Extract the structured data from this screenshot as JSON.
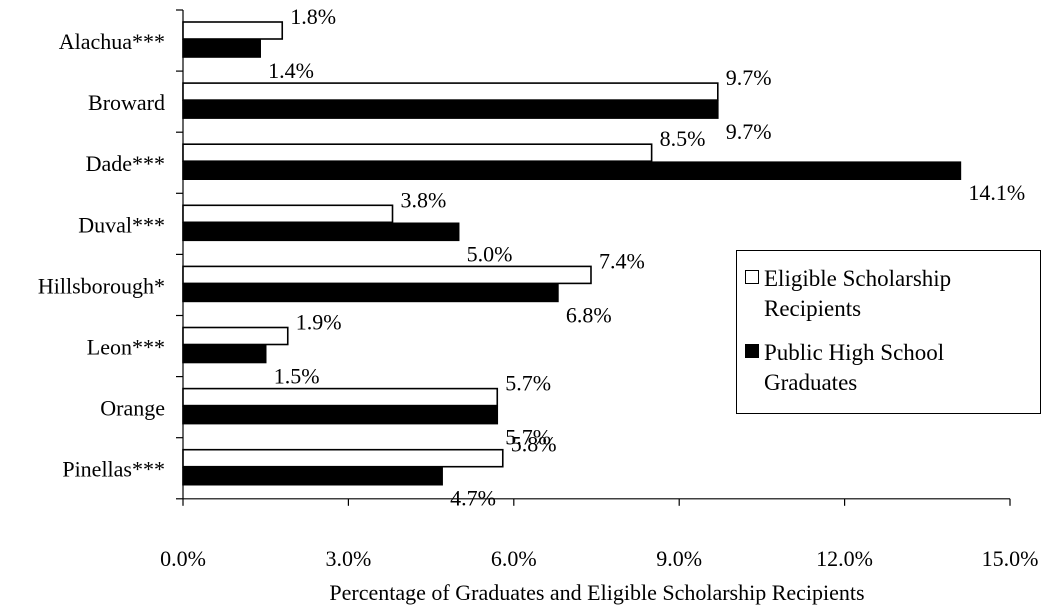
{
  "chart_data": {
    "type": "bar",
    "orientation": "horizontal",
    "categories": [
      "Alachua***",
      "Broward",
      "Dade***",
      "Duval***",
      "Hillsborough*",
      "Leon***",
      "Orange",
      "Pinellas***"
    ],
    "series": [
      {
        "name": "Eligible Scholarship Recipients",
        "values": [
          1.8,
          9.7,
          8.5,
          3.8,
          7.4,
          1.9,
          5.7,
          5.8
        ],
        "labels": [
          "1.8%",
          "9.7%",
          "8.5%",
          "3.8%",
          "7.4%",
          "1.9%",
          "5.7%",
          "5.8%"
        ],
        "fill": "#ffffff",
        "stroke": "#000000"
      },
      {
        "name": "Public High School Graduates",
        "values": [
          1.4,
          9.7,
          14.1,
          5.0,
          6.8,
          1.5,
          5.7,
          4.7
        ],
        "labels": [
          "1.4%",
          "9.7%",
          "14.1%",
          "5.0%",
          "6.8%",
          "1.5%",
          "5.7%",
          "4.7%"
        ],
        "fill": "#000000",
        "stroke": "#000000"
      }
    ],
    "xlim": [
      0,
      15
    ],
    "x_ticks": [
      0,
      3,
      6,
      9,
      12,
      15
    ],
    "x_tick_labels": [
      "0.0%",
      "3.0%",
      "6.0%",
      "9.0%",
      "12.0%",
      "15.0%"
    ],
    "xlabel": "Percentage of Graduates and Eligible Scholarship Recipients",
    "ylabel": "",
    "grid": false,
    "legend_position": "right"
  }
}
